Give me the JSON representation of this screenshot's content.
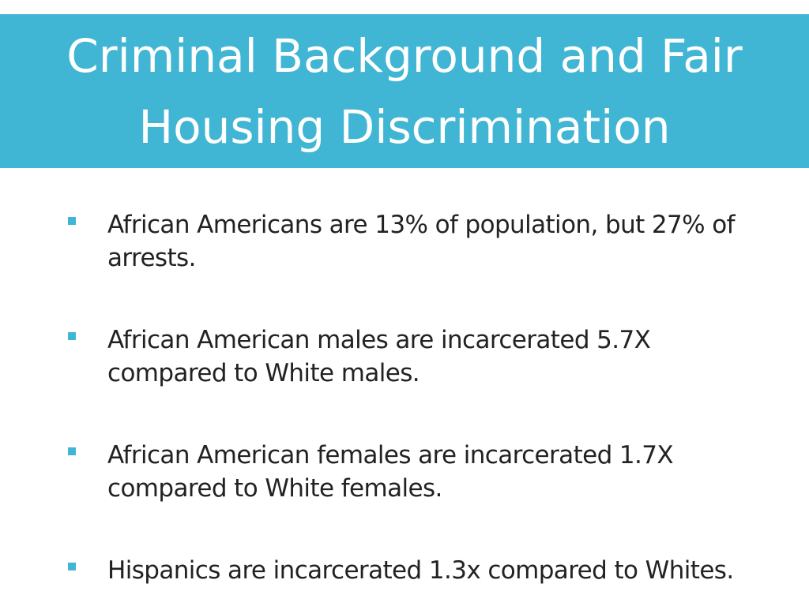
{
  "title": {
    "line1": "Criminal Background and Fair",
    "line2": "Housing Discrimination"
  },
  "colors": {
    "accent": "#41b6d4",
    "text": "#222222",
    "title_text": "#ffffff"
  },
  "bullets": [
    {
      "line1": "African Americans are 13% of population, but 27% of",
      "line2": "arrests."
    },
    {
      "line1": "African American males are incarcerated 5.7X",
      "line2": "compared to White males."
    },
    {
      "line1": "African American females are incarcerated 1.7X",
      "line2": "compared to White females."
    },
    {
      "line1": "Hispanics are incarcerated 1.3x compared to Whites.",
      "line2": ""
    }
  ]
}
